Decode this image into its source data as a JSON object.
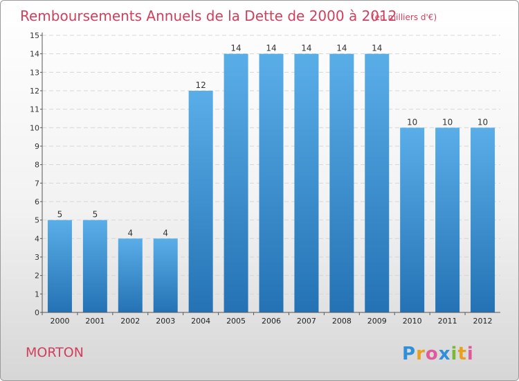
{
  "title": "Remboursements Annuels de la Dette de 2000 à 2012",
  "subtitle": "(en milliers d'€)",
  "commune": "MORTON",
  "logo_text": "Proxiti",
  "colors": {
    "bar_light": "#5aaee8",
    "bar_dark": "#2472b4",
    "title": "#d0405c"
  },
  "chart_data": {
    "type": "bar",
    "title": "Remboursements Annuels de la Dette de 2000 à 2012",
    "subtitle": "(en milliers d'€)",
    "categories": [
      "2000",
      "2001",
      "2002",
      "2003",
      "2004",
      "2005",
      "2006",
      "2007",
      "2008",
      "2009",
      "2010",
      "2011",
      "2012"
    ],
    "values": [
      5,
      5,
      4,
      4,
      12,
      14,
      14,
      14,
      14,
      14,
      10,
      10,
      10
    ],
    "ylim": [
      0,
      15
    ],
    "yticks": [
      0,
      1,
      2,
      3,
      4,
      5,
      6,
      7,
      8,
      9,
      10,
      11,
      12,
      13,
      14,
      15
    ],
    "grid": true,
    "legend": "none"
  }
}
